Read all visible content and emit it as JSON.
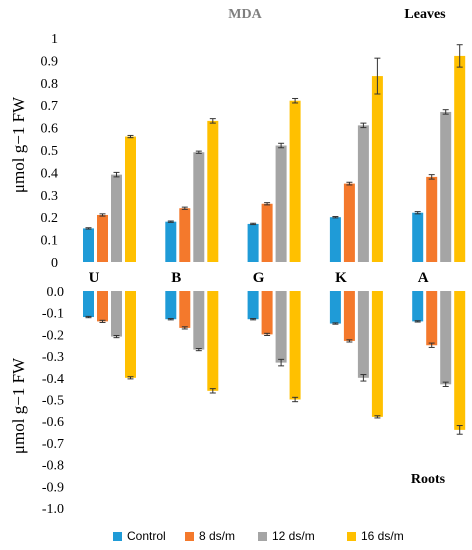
{
  "chart_data": [
    {
      "type": "bar",
      "title": "MDA",
      "panel_label": "Leaves",
      "ylabel": "μmol g−1 FW",
      "ylim": [
        0,
        1
      ],
      "ytick_labels": [
        "0",
        "0.1",
        "0.2",
        "0.3",
        "0.4",
        "0.5",
        "0.6",
        "0.7",
        "0.8",
        "0.9",
        "1"
      ],
      "categories": [
        "U",
        "B",
        "G",
        "K",
        "A"
      ],
      "series": [
        {
          "name": "Control",
          "values": [
            0.15,
            0.18,
            0.17,
            0.2,
            0.22
          ],
          "errors": [
            0.003,
            0.003,
            0.003,
            0.003,
            0.005
          ]
        },
        {
          "name": "8 ds/m",
          "values": [
            0.21,
            0.24,
            0.26,
            0.35,
            0.38
          ],
          "errors": [
            0.005,
            0.005,
            0.005,
            0.006,
            0.01
          ]
        },
        {
          "name": "12 ds/m",
          "values": [
            0.39,
            0.49,
            0.52,
            0.61,
            0.67
          ],
          "errors": [
            0.01,
            0.005,
            0.01,
            0.01,
            0.01
          ]
        },
        {
          "name": "16 ds/m",
          "values": [
            0.56,
            0.63,
            0.72,
            0.83,
            0.92
          ],
          "errors": [
            0.005,
            0.01,
            0.01,
            0.08,
            0.05
          ]
        }
      ]
    },
    {
      "type": "bar",
      "panel_label": "Roots",
      "ylabel": "μmol g−1 FW",
      "ylim": [
        -1,
        0
      ],
      "ytick_labels": [
        "0.0",
        "-0.1",
        "-0.2",
        "-0.3",
        "-0.4",
        "-0.5",
        "-0.6",
        "-0.7",
        "-0.8",
        "-0.9",
        "-1.0"
      ],
      "categories": [
        "U",
        "B",
        "G",
        "K",
        "A"
      ],
      "series": [
        {
          "name": "Control",
          "values": [
            -0.12,
            -0.13,
            -0.13,
            -0.15,
            -0.14
          ],
          "errors": [
            0.003,
            0.003,
            0.003,
            0.003,
            0.003
          ]
        },
        {
          "name": "8 ds/m",
          "values": [
            -0.14,
            -0.17,
            -0.2,
            -0.23,
            -0.25
          ],
          "errors": [
            0.005,
            0.005,
            0.005,
            0.005,
            0.01
          ]
        },
        {
          "name": "12 ds/m",
          "values": [
            -0.21,
            -0.27,
            -0.33,
            -0.4,
            -0.43
          ],
          "errors": [
            0.005,
            0.005,
            0.015,
            0.015,
            0.01
          ]
        },
        {
          "name": "16 ds/m",
          "values": [
            -0.4,
            -0.46,
            -0.5,
            -0.58,
            -0.64
          ],
          "errors": [
            0.005,
            0.01,
            0.01,
            0.005,
            0.02
          ]
        }
      ]
    }
  ],
  "legend": [
    {
      "label": "Control",
      "color": "#1f9bd7"
    },
    {
      "label": "8 ds/m",
      "color": "#f4792c"
    },
    {
      "label": "12 ds/m",
      "color": "#a5a5a5"
    },
    {
      "label": "16 ds/m",
      "color": "#ffc000"
    }
  ]
}
